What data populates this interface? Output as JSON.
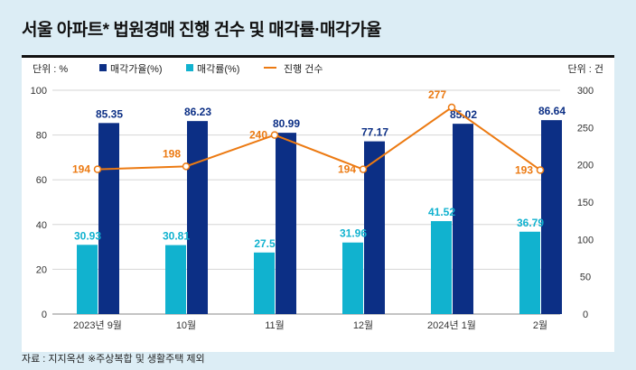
{
  "title": "서울 아파트* 법원경매 진행 건수 및 매각률·매각가율",
  "source": "자료 : 지지옥션 ※주상복합 및 생활주택 제외",
  "chart_data": {
    "type": "bar+line",
    "title": "서울 아파트* 법원경매 진행 건수 및 매각률·매각가율",
    "left_unit": "단위 : %",
    "right_unit": "단위 : 건",
    "categories": [
      "2023년 9월",
      "10월",
      "11월",
      "12월",
      "2024년 1월",
      "2월"
    ],
    "y_left": {
      "range": [
        0,
        100
      ],
      "ticks": [
        "0",
        "20",
        "40",
        "60",
        "80",
        "100"
      ]
    },
    "y_right": {
      "range": [
        0,
        300
      ],
      "ticks": [
        "0",
        "50",
        "100",
        "150",
        "200",
        "250",
        "300"
      ]
    },
    "grid": true,
    "legend_placement": "top",
    "series": [
      {
        "name": "매각가율(%)",
        "type": "bar",
        "axis": "left",
        "color": "#0c2f85",
        "values": [
          85.35,
          86.23,
          80.99,
          77.17,
          85.02,
          86.64
        ],
        "labels": [
          "85.35",
          "86.23",
          "80.99",
          "77.17",
          "85.02",
          "86.64"
        ]
      },
      {
        "name": "매각률(%)",
        "type": "bar",
        "axis": "left",
        "color": "#11b2cf",
        "values": [
          30.93,
          30.81,
          27.5,
          31.96,
          41.52,
          36.79
        ],
        "labels": [
          "30.93",
          "30.81",
          "27.5",
          "31.96",
          "41.52",
          "36.79"
        ]
      },
      {
        "name": "진행 건수",
        "type": "line",
        "axis": "right",
        "color": "#ec7a12",
        "values": [
          194,
          198,
          240,
          194,
          277,
          193
        ],
        "labels": [
          "194",
          "198",
          "240",
          "194",
          "277",
          "193"
        ]
      }
    ]
  }
}
